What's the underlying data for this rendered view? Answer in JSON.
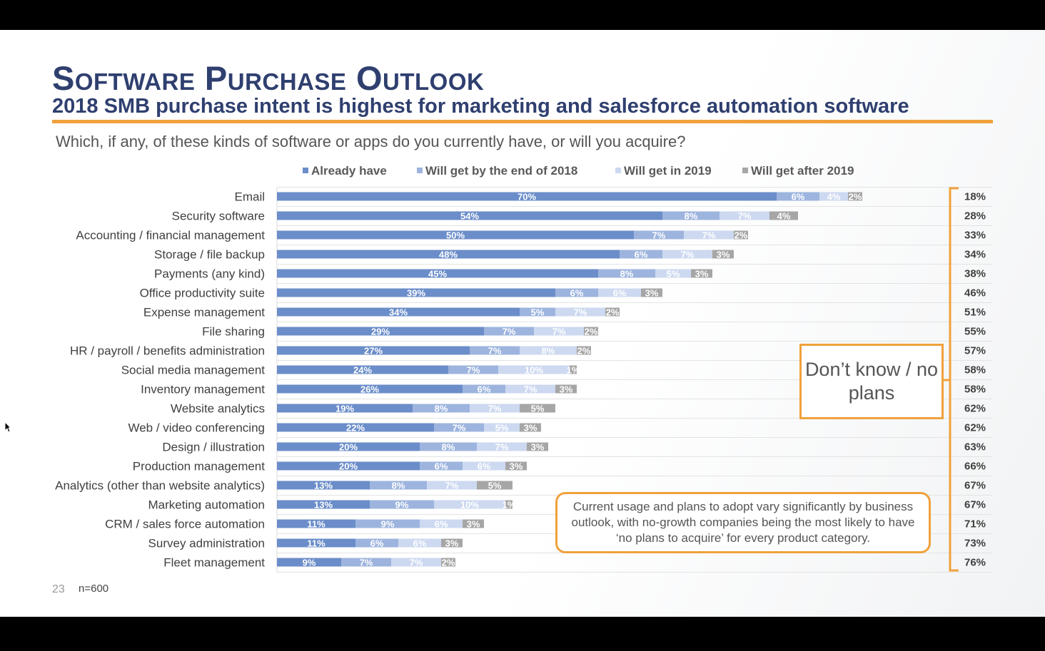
{
  "slide": {
    "title": "Software Purchase Outlook",
    "subtitle": "2018 SMB purchase intent is highest for marketing and salesforce automation software",
    "question": "Which, if any, of these kinds of software or apps do you currently have, or will you acquire?",
    "page_number": "23",
    "sample_size": "n=600",
    "dont_know_label": "Don’t know / no plans",
    "callout": "Current usage and plans to adopt vary significantly by business outlook, with no-growth companies being the most likely to have ‘no plans to acquire’ for every product category."
  },
  "colors": {
    "title": "#2f3f6f",
    "accent_orange": "#f0a13c",
    "already_have": "#6b8dc9",
    "by_end_2018": "#9db4de",
    "in_2019": "#cdd9f0",
    "after_2019": "#a6a6a6"
  },
  "chart_data": {
    "type": "bar",
    "orientation": "horizontal",
    "stacked": true,
    "xlim": [
      0,
      100
    ],
    "legend_position": "top",
    "gridlines": true,
    "categories": [
      "Email",
      "Security software",
      "Accounting / financial management",
      "Storage / file backup",
      "Payments (any kind)",
      "Office productivity suite",
      "Expense management",
      "File sharing",
      "HR / payroll / benefits administration",
      "Social media management",
      "Inventory management",
      "Website analytics",
      "Web / video conferencing",
      "Design / illustration",
      "Production management",
      "Analytics (other than website analytics)",
      "Marketing automation",
      "CRM / sales force automation",
      "Survey administration",
      "Fleet management"
    ],
    "series": [
      {
        "name": "Already have",
        "color": "#6b8dc9",
        "values": [
          70,
          54,
          50,
          48,
          45,
          39,
          34,
          29,
          27,
          24,
          26,
          19,
          22,
          20,
          20,
          13,
          13,
          11,
          11,
          9
        ]
      },
      {
        "name": "Will get by the end of 2018",
        "color": "#9db4de",
        "values": [
          6,
          8,
          7,
          6,
          8,
          6,
          5,
          7,
          7,
          7,
          6,
          8,
          7,
          8,
          6,
          8,
          9,
          9,
          6,
          7
        ]
      },
      {
        "name": "Will get in 2019",
        "color": "#cdd9f0",
        "values": [
          4,
          7,
          7,
          7,
          5,
          6,
          7,
          7,
          8,
          10,
          7,
          7,
          5,
          7,
          6,
          7,
          10,
          6,
          6,
          7
        ]
      },
      {
        "name": "Will get after 2019",
        "color": "#a6a6a6",
        "values": [
          2,
          4,
          2,
          3,
          3,
          3,
          2,
          2,
          2,
          1,
          3,
          5,
          3,
          3,
          3,
          5,
          1,
          3,
          3,
          2
        ]
      }
    ],
    "dont_know": [
      18,
      28,
      33,
      34,
      38,
      46,
      51,
      55,
      57,
      58,
      58,
      62,
      62,
      63,
      66,
      67,
      67,
      71,
      73,
      76
    ]
  }
}
